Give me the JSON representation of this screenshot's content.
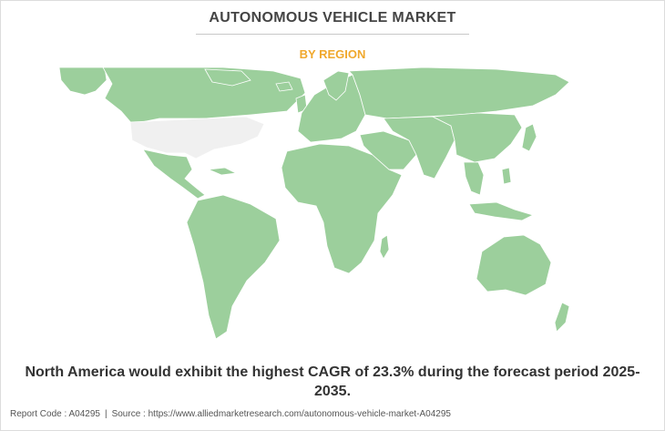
{
  "title": "AUTONOMOUS VEHICLE MARKET",
  "subtitle": "BY REGION",
  "headline": "North America would exhibit the highest CAGR of 23.3% during the forecast period 2025-2035.",
  "footer": {
    "report_code": "Report Code : A04295",
    "separator": "|",
    "source": "Source : https://www.alliedmarketresearch.com/autonomous-vehicle-market-A04295"
  },
  "map": {
    "highlighted_region": "North America",
    "colors": {
      "highlighted": "#f0f0f0",
      "other": "#9ccf9c",
      "border": "#ffffff",
      "background": "#ffffff"
    }
  }
}
